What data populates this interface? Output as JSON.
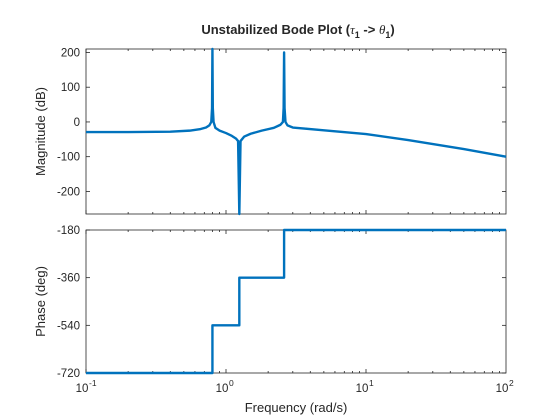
{
  "chart_data": [
    {
      "type": "line",
      "title_prefix": "Unstabilized Bode Plot (",
      "title_tau": "τ",
      "title_tau_sub": "1",
      "title_arrow": " -> ",
      "title_theta": "θ",
      "title_theta_sub": "1",
      "title_suffix": ")",
      "ylabel": "Magnitude (dB)",
      "xscale": "log",
      "xlim": [
        0.1,
        100
      ],
      "ylim": [
        -265,
        210
      ],
      "yticks": [
        -200,
        -100,
        0,
        100,
        200
      ],
      "grid": false,
      "series": [
        {
          "color": "#0072BD",
          "points": [
            [
              0.1,
              -29
            ],
            [
              0.2,
              -29
            ],
            [
              0.4,
              -28
            ],
            [
              0.55,
              -25
            ],
            [
              0.65,
              -21
            ],
            [
              0.72,
              -16
            ],
            [
              0.76,
              -10
            ],
            [
              0.785,
              0
            ],
            [
              0.795,
              40
            ],
            [
              0.8,
              210
            ],
            [
              0.805,
              40
            ],
            [
              0.815,
              0
            ],
            [
              0.84,
              -17
            ],
            [
              0.9,
              -25
            ],
            [
              1.0,
              -32
            ],
            [
              1.1,
              -40
            ],
            [
              1.18,
              -48
            ],
            [
              1.22,
              -55
            ],
            [
              1.245,
              -265
            ],
            [
              1.27,
              -55
            ],
            [
              1.35,
              -42
            ],
            [
              1.5,
              -34
            ],
            [
              1.8,
              -25
            ],
            [
              2.2,
              -17
            ],
            [
              2.45,
              -8
            ],
            [
              2.55,
              0
            ],
            [
              2.58,
              40
            ],
            [
              2.6,
              200
            ],
            [
              2.62,
              40
            ],
            [
              2.66,
              0
            ],
            [
              2.75,
              -10
            ],
            [
              3.0,
              -16
            ],
            [
              5,
              -24
            ],
            [
              10,
              -35
            ],
            [
              20,
              -52
            ],
            [
              50,
              -78
            ],
            [
              100,
              -100
            ]
          ]
        }
      ]
    },
    {
      "type": "line",
      "xlabel": "Frequency  (rad/s)",
      "ylabel": "Phase (deg)",
      "xscale": "log",
      "xlim": [
        0.1,
        100
      ],
      "xticks": [
        {
          "base": "10",
          "exp": "-1",
          "value": 0.1
        },
        {
          "base": "10",
          "exp": "0",
          "value": 1
        },
        {
          "base": "10",
          "exp": "1",
          "value": 10
        },
        {
          "base": "10",
          "exp": "2",
          "value": 100
        }
      ],
      "ylim": [
        -720,
        -180
      ],
      "yticks": [
        -720,
        -540,
        -360,
        -180
      ],
      "grid": false,
      "series": [
        {
          "color": "#0072BD",
          "points": [
            [
              0.1,
              -720
            ],
            [
              0.8,
              -720
            ],
            [
              0.8,
              -540
            ],
            [
              1.245,
              -540
            ],
            [
              1.245,
              -360
            ],
            [
              2.6,
              -360
            ],
            [
              2.6,
              -180
            ],
            [
              100,
              -180
            ]
          ]
        }
      ]
    }
  ]
}
